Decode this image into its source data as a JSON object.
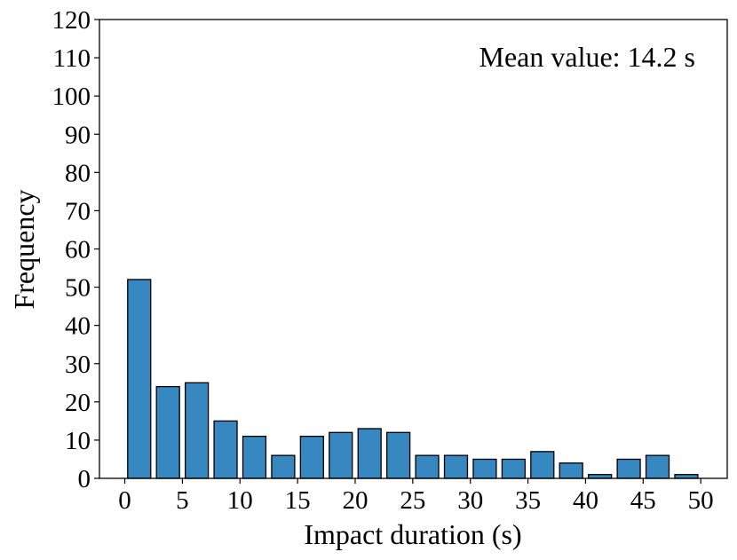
{
  "chart_data": {
    "type": "histogram",
    "x_label": "Impact duration (s)",
    "y_label": "Frequency",
    "annotation": "Mean value: 14.2 s",
    "bins": [
      0,
      2.5,
      5,
      7.5,
      10,
      12.5,
      15,
      17.5,
      20,
      22.5,
      25,
      27.5,
      30,
      32.5,
      35,
      37.5,
      40,
      42.5,
      45,
      47.5,
      50
    ],
    "values": [
      52,
      24,
      25,
      15,
      11,
      6,
      11,
      12,
      13,
      12,
      6,
      6,
      5,
      5,
      7,
      4,
      1,
      5,
      6,
      1
    ],
    "color": "#3787c0",
    "xlim": [
      -2.2,
      52.3
    ],
    "xticks": [
      0,
      5,
      10,
      15,
      20,
      25,
      30,
      35,
      40,
      45,
      50
    ],
    "ylim": [
      0,
      120
    ],
    "yticks": [
      0,
      10,
      20,
      30,
      40,
      50,
      60,
      70,
      80,
      90,
      100,
      110,
      120
    ]
  }
}
